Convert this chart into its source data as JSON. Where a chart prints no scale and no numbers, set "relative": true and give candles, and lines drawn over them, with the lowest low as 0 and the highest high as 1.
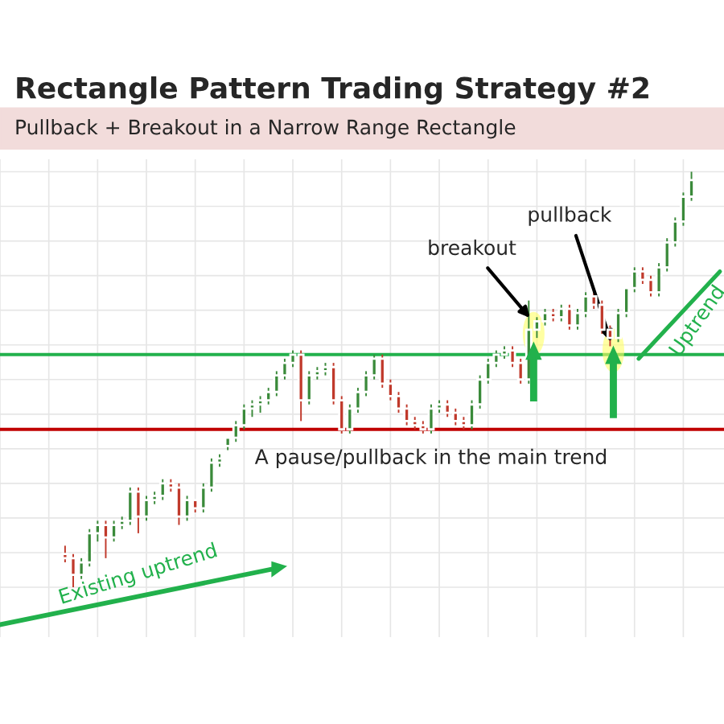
{
  "chart_data": {
    "type": "candlestick",
    "title": "Rectangle Pattern Trading Strategy #2",
    "subtitle": "Pullback + Breakout in a Narrow Range Rectangle",
    "relative": true,
    "grid": true,
    "legend": false,
    "categories": [
      null,
      null,
      null,
      null,
      null,
      null,
      null,
      null,
      null,
      null,
      null,
      null,
      null,
      null,
      null,
      null,
      null,
      null,
      null,
      null,
      null,
      null,
      null,
      null,
      null,
      null,
      null,
      null,
      null,
      null,
      null,
      null,
      null,
      null,
      null,
      null,
      null,
      null,
      null,
      null,
      null,
      null,
      null,
      null,
      null,
      null,
      null,
      null,
      null,
      null,
      null,
      null,
      null,
      null,
      null,
      null,
      null,
      null,
      null,
      null,
      null,
      null,
      null,
      null,
      null,
      null,
      null,
      null,
      null,
      null,
      null,
      null,
      null,
      null,
      null,
      null,
      null,
      null
    ],
    "ohlc": [
      [
        0.08,
        0.1,
        0.06,
        0.07
      ],
      [
        0.07,
        0.08,
        0.0,
        0.03
      ],
      [
        0.03,
        0.07,
        0.02,
        0.06
      ],
      [
        0.06,
        0.14,
        0.05,
        0.13
      ],
      [
        0.13,
        0.16,
        0.11,
        0.15
      ],
      [
        0.15,
        0.16,
        0.07,
        0.12
      ],
      [
        0.12,
        0.16,
        0.11,
        0.15
      ],
      [
        0.15,
        0.17,
        0.14,
        0.16
      ],
      [
        0.16,
        0.24,
        0.15,
        0.23
      ],
      [
        0.23,
        0.24,
        0.13,
        0.17
      ],
      [
        0.17,
        0.22,
        0.16,
        0.21
      ],
      [
        0.21,
        0.23,
        0.2,
        0.22
      ],
      [
        0.22,
        0.26,
        0.21,
        0.25
      ],
      [
        0.25,
        0.26,
        0.23,
        0.24
      ],
      [
        0.24,
        0.25,
        0.15,
        0.17
      ],
      [
        0.17,
        0.22,
        0.16,
        0.21
      ],
      [
        0.21,
        0.21,
        0.18,
        0.19
      ],
      [
        0.19,
        0.25,
        0.18,
        0.24
      ],
      [
        0.24,
        0.31,
        0.23,
        0.3
      ],
      [
        0.3,
        0.32,
        0.29,
        0.31
      ],
      [
        0.34,
        0.36,
        0.33,
        0.36
      ],
      [
        0.36,
        0.4,
        0.35,
        0.39
      ],
      [
        0.39,
        0.44,
        0.38,
        0.43
      ],
      [
        0.43,
        0.45,
        0.41,
        0.44
      ],
      [
        0.44,
        0.46,
        0.42,
        0.45
      ],
      [
        0.45,
        0.48,
        0.44,
        0.47
      ],
      [
        0.47,
        0.52,
        0.46,
        0.51
      ],
      [
        0.51,
        0.55,
        0.5,
        0.54
      ],
      [
        0.54,
        0.57,
        0.53,
        0.56
      ],
      [
        0.56,
        0.57,
        0.4,
        0.45
      ],
      [
        0.45,
        0.52,
        0.44,
        0.51
      ],
      [
        0.51,
        0.53,
        0.5,
        0.52
      ],
      [
        0.52,
        0.54,
        0.51,
        0.53
      ],
      [
        0.53,
        0.54,
        0.44,
        0.45
      ],
      [
        0.45,
        0.46,
        0.37,
        0.38
      ],
      [
        0.38,
        0.44,
        0.37,
        0.43
      ],
      [
        0.43,
        0.48,
        0.42,
        0.47
      ],
      [
        0.47,
        0.52,
        0.46,
        0.51
      ],
      [
        0.51,
        0.56,
        0.5,
        0.55
      ],
      [
        0.55,
        0.56,
        0.48,
        0.49
      ],
      [
        0.49,
        0.5,
        0.45,
        0.46
      ],
      [
        0.46,
        0.47,
        0.42,
        0.43
      ],
      [
        0.43,
        0.44,
        0.39,
        0.4
      ],
      [
        0.4,
        0.41,
        0.38,
        0.39
      ],
      [
        0.39,
        0.4,
        0.37,
        0.38
      ],
      [
        0.38,
        0.44,
        0.37,
        0.43
      ],
      [
        0.43,
        0.45,
        0.42,
        0.44
      ],
      [
        0.44,
        0.45,
        0.41,
        0.42
      ],
      [
        0.42,
        0.43,
        0.39,
        0.4
      ],
      [
        0.4,
        0.41,
        0.38,
        0.39
      ],
      [
        0.39,
        0.45,
        0.38,
        0.44
      ],
      [
        0.44,
        0.51,
        0.43,
        0.5
      ],
      [
        0.5,
        0.55,
        0.49,
        0.54
      ],
      [
        0.54,
        0.57,
        0.53,
        0.56
      ],
      [
        0.56,
        0.58,
        0.55,
        0.57
      ],
      [
        0.57,
        0.58,
        0.53,
        0.54
      ],
      [
        0.54,
        0.55,
        0.49,
        0.5
      ],
      [
        0.5,
        0.69,
        0.49,
        0.62
      ],
      [
        0.62,
        0.65,
        0.6,
        0.64
      ],
      [
        0.64,
        0.67,
        0.63,
        0.66
      ],
      [
        0.66,
        0.67,
        0.64,
        0.65
      ],
      [
        0.65,
        0.68,
        0.64,
        0.67
      ],
      [
        0.67,
        0.68,
        0.62,
        0.63
      ],
      [
        0.63,
        0.67,
        0.62,
        0.66
      ],
      [
        0.66,
        0.71,
        0.65,
        0.7
      ],
      [
        0.7,
        0.71,
        0.67,
        0.68
      ],
      [
        0.68,
        0.69,
        0.61,
        0.62
      ],
      [
        0.62,
        0.63,
        0.58,
        0.6
      ],
      [
        0.6,
        0.67,
        0.59,
        0.66
      ],
      [
        0.66,
        0.72,
        0.65,
        0.72
      ],
      [
        0.72,
        0.77,
        0.71,
        0.76
      ],
      [
        0.76,
        0.77,
        0.73,
        0.74
      ],
      [
        0.74,
        0.75,
        0.7,
        0.71
      ],
      [
        0.71,
        0.78,
        0.7,
        0.77
      ],
      [
        0.77,
        0.84,
        0.76,
        0.83
      ],
      [
        0.83,
        0.89,
        0.82,
        0.88
      ],
      [
        0.88,
        0.95,
        0.87,
        0.94
      ],
      [
        0.94,
        1.0,
        0.93,
        0.98
      ]
    ],
    "ref_lines": [
      {
        "axis": "y",
        "value": 0.56,
        "color": "#22b14c"
      },
      {
        "axis": "y",
        "value": 0.38,
        "color": "#c00000"
      }
    ],
    "annotations": [
      "breakout",
      "pullback",
      "A pause/pullback in the main trend",
      "Existing uptrend",
      "Uptrend"
    ]
  }
}
